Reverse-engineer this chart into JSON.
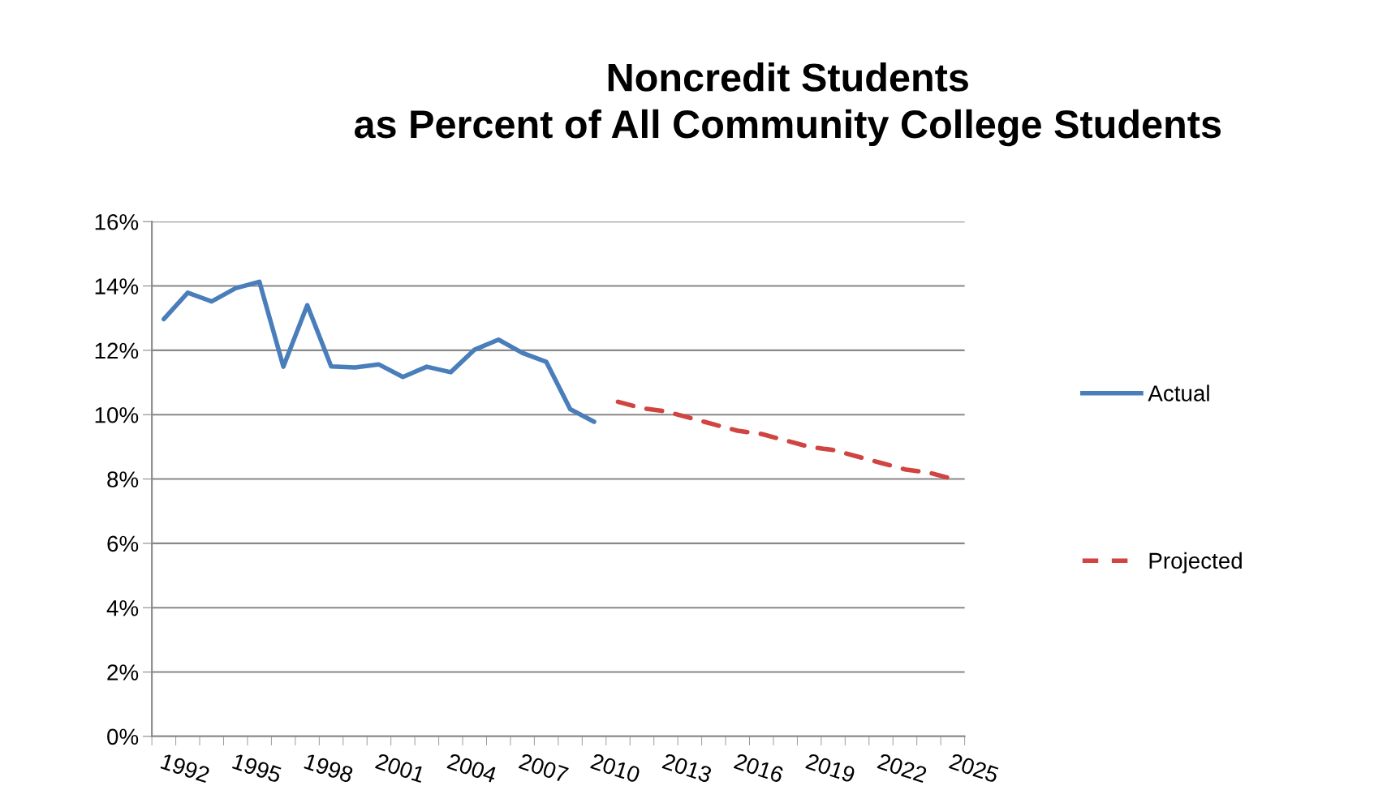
{
  "chart_data": {
    "type": "line",
    "title": "Noncredit Students\nas Percent of All Community College Students",
    "categories": [
      "1992",
      null,
      null,
      "1995",
      null,
      null,
      "1998",
      null,
      null,
      "2001",
      null,
      null,
      "2004",
      null,
      null,
      "2007",
      null,
      null,
      "2010",
      null,
      null,
      "2013",
      null,
      null,
      "2016",
      null,
      null,
      "2019",
      null,
      null,
      "2022",
      null,
      null,
      "2025"
    ],
    "series": [
      {
        "name": "Actual",
        "color": "#4a7ebb",
        "line_style": "solid",
        "values": [
          12.97,
          13.79,
          13.52,
          13.93,
          14.13,
          11.49,
          13.4,
          11.5,
          11.47,
          11.56,
          11.17,
          11.49,
          11.32,
          12.02,
          12.33,
          11.92,
          11.64,
          10.17,
          9.78,
          null,
          null,
          null,
          null,
          null,
          null,
          null,
          null,
          null,
          null,
          null,
          null,
          null,
          null,
          null
        ]
      },
      {
        "name": "Projected",
        "color": "#d04541",
        "line_style": "dashed",
        "values": [
          null,
          null,
          null,
          null,
          null,
          null,
          null,
          null,
          null,
          null,
          null,
          null,
          null,
          null,
          null,
          null,
          null,
          null,
          null,
          10.4,
          10.2,
          10.1,
          9.9,
          9.7,
          9.5,
          9.4,
          9.2,
          9.0,
          8.9,
          8.7,
          8.5,
          8.3,
          8.2,
          8.0
        ]
      }
    ],
    "ylim": [
      0,
      16
    ],
    "yticks": [
      {
        "value": 0,
        "label": "0%"
      },
      {
        "value": 2,
        "label": "2%"
      },
      {
        "value": 4,
        "label": "4%"
      },
      {
        "value": 6,
        "label": "6%"
      },
      {
        "value": 8,
        "label": "8%"
      },
      {
        "value": 10,
        "label": "10%"
      },
      {
        "value": 12,
        "label": "12%"
      },
      {
        "value": 14,
        "label": "14%"
      },
      {
        "value": 16,
        "label": "16%"
      }
    ],
    "grid": "y",
    "legend": "right"
  }
}
